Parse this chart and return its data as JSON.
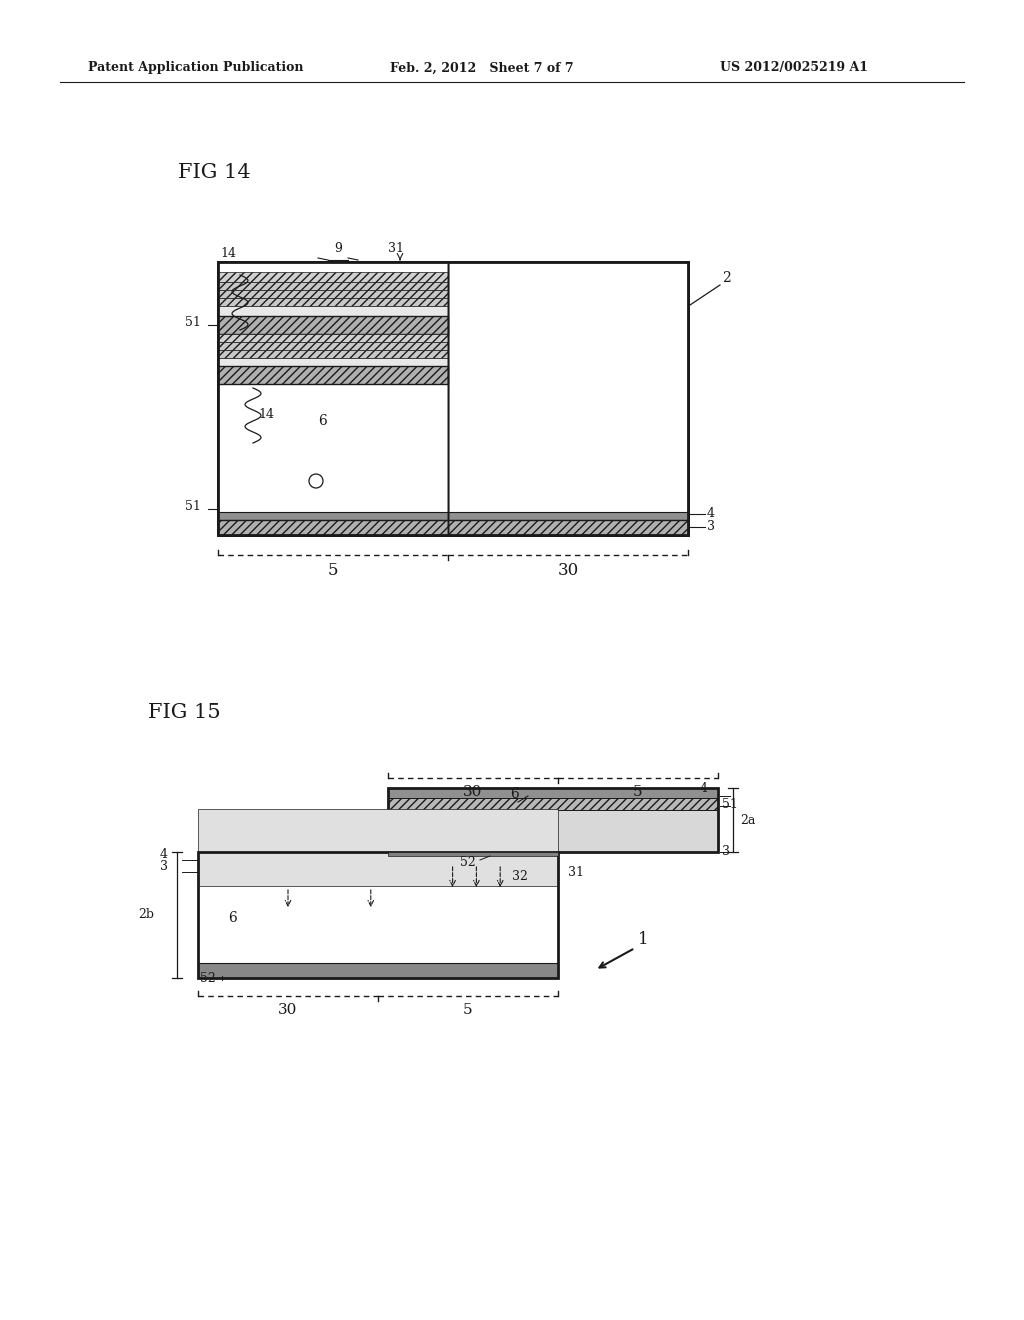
{
  "bg_color": "#ffffff",
  "header_left": "Patent Application Publication",
  "header_mid": "Feb. 2, 2012   Sheet 7 of 7",
  "header_right": "US 2012/0025219 A1",
  "fig14_label": "FIG 14",
  "fig15_label": "FIG 15"
}
